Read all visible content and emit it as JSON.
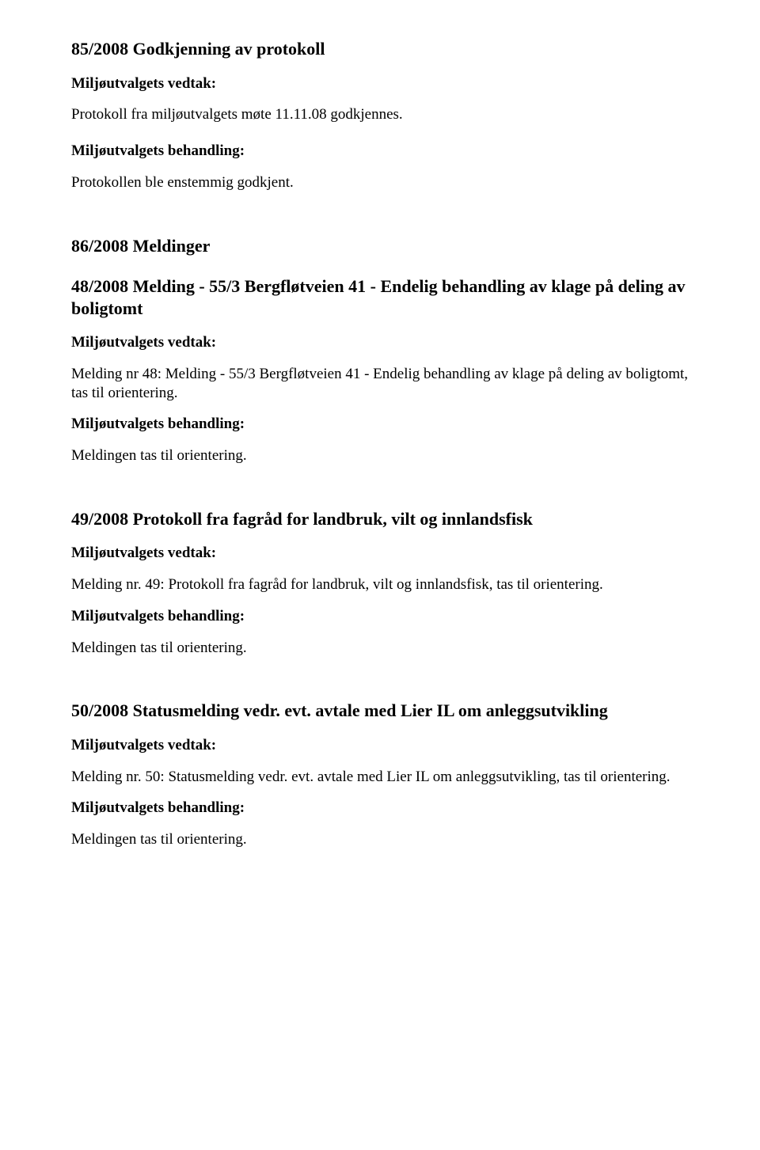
{
  "doc": {
    "font_family": "Times New Roman",
    "text_color": "#000000",
    "background_color": "#ffffff",
    "body_fontsize_pt": 14,
    "heading_fontsize_pt": 16
  },
  "sections": {
    "s85": {
      "title": "85/2008 Godkjenning av protokoll",
      "vedtak_label": "Miljøutvalgets vedtak:",
      "vedtak_body": "Protokoll fra miljøutvalgets møte 11.11.08  godkjennes.",
      "behandling_label": "Miljøutvalgets behandling:",
      "behandling_body": "Protokollen ble enstemmig godkjent."
    },
    "s86": {
      "title": "86/2008 Meldinger",
      "sub48": {
        "heading": "48/2008 Melding - 55/3 Bergfløtveien 41 - Endelig behandling av klage på deling av boligtomt",
        "vedtak_label": "Miljøutvalgets vedtak:",
        "vedtak_body": "Melding nr 48: Melding - 55/3 Bergfløtveien 41 - Endelig behandling av klage på deling av boligtomt, tas til orientering.",
        "behandling_label": "Miljøutvalgets behandling:",
        "behandling_body": "Meldingen tas til orientering."
      },
      "sub49": {
        "heading": "49/2008 Protokoll fra fagråd for landbruk, vilt og innlandsfisk",
        "vedtak_label": "Miljøutvalgets vedtak:",
        "vedtak_body": "Melding nr. 49: Protokoll fra fagråd for landbruk, vilt og innlandsfisk, tas til orientering.",
        "behandling_label": "Miljøutvalgets behandling:",
        "behandling_body": "Meldingen tas til orientering."
      },
      "sub50": {
        "heading": "50/2008 Statusmelding vedr. evt. avtale med Lier IL om anleggsutvikling",
        "vedtak_label": "Miljøutvalgets vedtak:",
        "vedtak_body": "Melding nr. 50: Statusmelding vedr. evt. avtale med Lier IL om anleggsutvikling, tas til orientering.",
        "behandling_label": "Miljøutvalgets behandling:",
        "behandling_body": "Meldingen tas til orientering."
      }
    }
  }
}
